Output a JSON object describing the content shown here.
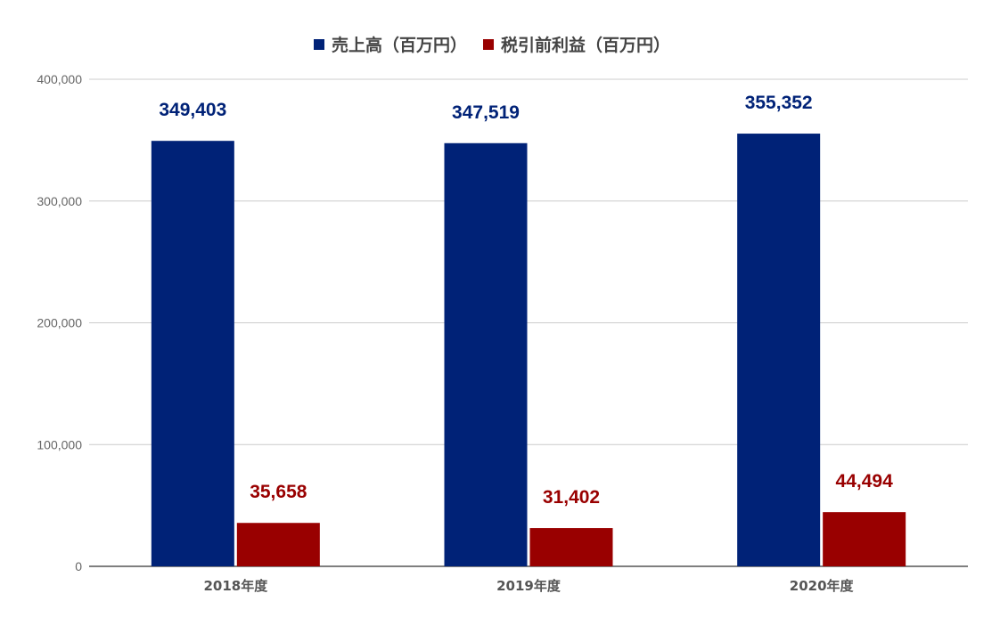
{
  "chart_data": {
    "type": "bar",
    "categories": [
      "2018年度",
      "2019年度",
      "2020年度"
    ],
    "series": [
      {
        "name": "売上高（百万円）",
        "color": "#002277",
        "values": [
          349403,
          347519,
          355352
        ],
        "labels": [
          "349,403",
          "347,519",
          "355,352"
        ]
      },
      {
        "name": "税引前利益（百万円）",
        "color": "#990000",
        "values": [
          35658,
          31402,
          44494
        ],
        "labels": [
          "35,658",
          "31,402",
          "44,494"
        ]
      }
    ],
    "ylim": [
      0,
      400000
    ],
    "yticks": [
      {
        "value": 0,
        "label": "0"
      },
      {
        "value": 100000,
        "label": "100,000"
      },
      {
        "value": 200000,
        "label": "200,000"
      },
      {
        "value": 300000,
        "label": "300,000"
      },
      {
        "value": 400000,
        "label": "400,000"
      }
    ],
    "grid": true,
    "legend": "top-center",
    "title": "",
    "xlabel": "",
    "ylabel": ""
  }
}
